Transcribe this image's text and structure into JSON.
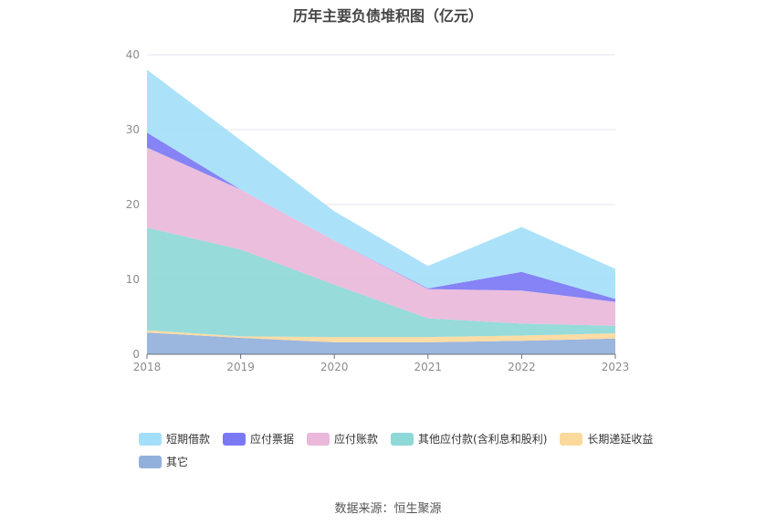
{
  "chart_data": {
    "type": "area",
    "title": "历年主要负债堆积图（亿元）",
    "x": [
      "2018",
      "2019",
      "2020",
      "2021",
      "2022",
      "2023"
    ],
    "ylim": [
      0,
      40
    ],
    "yticks": [
      0,
      10,
      20,
      30,
      40
    ],
    "stacked": true,
    "grid": true,
    "legend_position": "bottom",
    "series": [
      {
        "name": "其它",
        "color": "#92b0dc",
        "values": [
          2.9,
          2.2,
          1.6,
          1.6,
          1.8,
          2.1
        ]
      },
      {
        "name": "长期递延收益",
        "color": "#fbd99c",
        "values": [
          0.3,
          0.2,
          0.7,
          0.7,
          0.7,
          0.7
        ]
      },
      {
        "name": "其他应付款(含利息和股利)",
        "color": "#8ed8d8",
        "values": [
          13.7,
          11.6,
          7.0,
          2.5,
          1.6,
          1.0
        ]
      },
      {
        "name": "应付账款",
        "color": "#e9b8db",
        "values": [
          10.7,
          8.0,
          5.9,
          3.9,
          4.4,
          3.2
        ]
      },
      {
        "name": "应付票据",
        "color": "#7b78f4",
        "values": [
          2.0,
          0.0,
          0.0,
          0.1,
          2.5,
          0.4
        ]
      },
      {
        "name": "短期借款",
        "color": "#a4dffa",
        "values": [
          8.4,
          6.6,
          3.9,
          3.0,
          6.0,
          4.0
        ]
      }
    ],
    "legend_order": [
      "短期借款",
      "应付票据",
      "应付账款",
      "其他应付款(含利息和股利)",
      "长期递延收益",
      "其它"
    ]
  },
  "source": "数据来源：恒生聚源"
}
